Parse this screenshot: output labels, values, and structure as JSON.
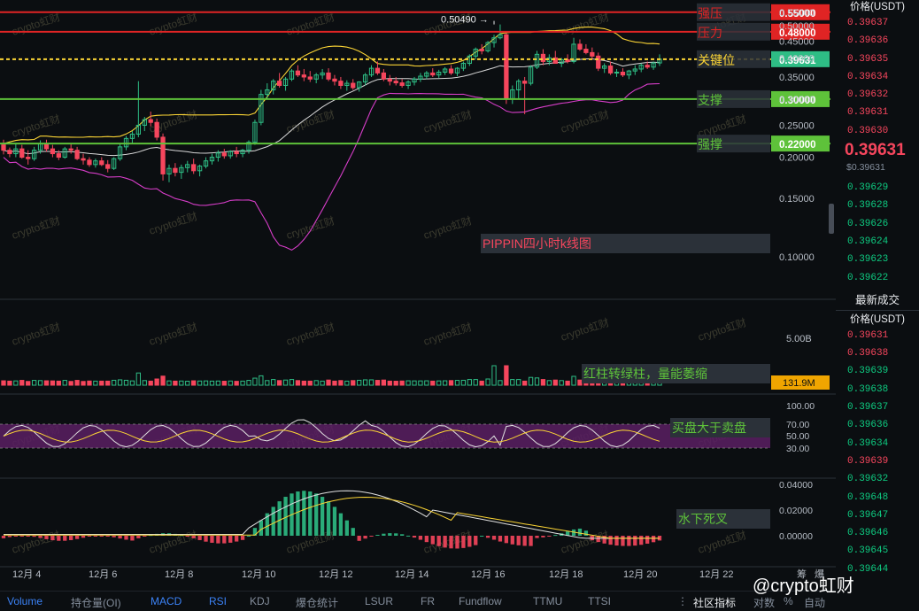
{
  "chart_data": {
    "type": "candlestick",
    "title": "PIPPIN四小时k线图",
    "price_axis": {
      "unit_label": "价格(USDT)",
      "ticks": [
        "0.55000",
        "0.50000",
        "0.45000",
        "0.40000",
        "0.35000",
        "0.30000",
        "0.25000",
        "0.20000",
        "0.15000",
        "0.10000"
      ],
      "scale": "log",
      "range": [
        0.078,
        0.57
      ]
    },
    "x_axis": {
      "ticks": [
        "12月 4",
        "12月 6",
        "12月 8",
        "12月 10",
        "12月 12",
        "12月 14",
        "12月 16",
        "12月 18",
        "12月 20",
        "12月 22"
      ]
    },
    "levels": [
      {
        "name": "强压",
        "value": 0.55,
        "label": "0.55000",
        "color": "#e02424"
      },
      {
        "name": "压力",
        "value": 0.48,
        "label": "0.48000",
        "color": "#e02424"
      },
      {
        "name": "关键位",
        "value": 0.39631,
        "label": "0.39631",
        "color": "#fcd535"
      },
      {
        "name": "支撑",
        "value": 0.3,
        "label": "0.30000",
        "color": "#5ec23a"
      },
      {
        "name": "强撑",
        "value": 0.22,
        "label": "0.22000",
        "color": "#5ec23a"
      }
    ],
    "high_marker": "0.50490 →",
    "current_price": "0.39631",
    "candles_ohlc": [
      [
        0.218,
        0.226,
        0.204,
        0.21
      ],
      [
        0.21,
        0.214,
        0.2,
        0.205
      ],
      [
        0.205,
        0.22,
        0.2,
        0.212
      ],
      [
        0.212,
        0.218,
        0.198,
        0.2
      ],
      [
        0.2,
        0.21,
        0.19,
        0.198
      ],
      [
        0.198,
        0.215,
        0.195,
        0.21
      ],
      [
        0.21,
        0.225,
        0.205,
        0.22
      ],
      [
        0.22,
        0.226,
        0.208,
        0.212
      ],
      [
        0.212,
        0.218,
        0.2,
        0.205
      ],
      [
        0.205,
        0.21,
        0.196,
        0.2
      ],
      [
        0.2,
        0.215,
        0.198,
        0.212
      ],
      [
        0.212,
        0.22,
        0.205,
        0.21
      ],
      [
        0.21,
        0.215,
        0.196,
        0.198
      ],
      [
        0.198,
        0.205,
        0.19,
        0.196
      ],
      [
        0.196,
        0.2,
        0.187,
        0.19
      ],
      [
        0.19,
        0.198,
        0.186,
        0.195
      ],
      [
        0.195,
        0.2,
        0.188,
        0.19
      ],
      [
        0.19,
        0.196,
        0.18,
        0.185
      ],
      [
        0.185,
        0.2,
        0.183,
        0.198
      ],
      [
        0.198,
        0.22,
        0.195,
        0.215
      ],
      [
        0.215,
        0.232,
        0.21,
        0.228
      ],
      [
        0.228,
        0.24,
        0.22,
        0.235
      ],
      [
        0.235,
        0.34,
        0.23,
        0.25
      ],
      [
        0.25,
        0.265,
        0.24,
        0.26
      ],
      [
        0.26,
        0.275,
        0.248,
        0.255
      ],
      [
        0.255,
        0.262,
        0.225,
        0.23
      ],
      [
        0.23,
        0.236,
        0.17,
        0.178
      ],
      [
        0.178,
        0.19,
        0.168,
        0.185
      ],
      [
        0.185,
        0.192,
        0.175,
        0.18
      ],
      [
        0.18,
        0.19,
        0.172,
        0.186
      ],
      [
        0.186,
        0.195,
        0.18,
        0.19
      ],
      [
        0.19,
        0.198,
        0.178,
        0.182
      ],
      [
        0.182,
        0.19,
        0.175,
        0.188
      ],
      [
        0.188,
        0.2,
        0.185,
        0.195
      ],
      [
        0.195,
        0.205,
        0.19,
        0.2
      ],
      [
        0.2,
        0.21,
        0.194,
        0.206
      ],
      [
        0.206,
        0.212,
        0.198,
        0.202
      ],
      [
        0.202,
        0.21,
        0.198,
        0.208
      ],
      [
        0.208,
        0.215,
        0.2,
        0.205
      ],
      [
        0.205,
        0.212,
        0.2,
        0.21
      ],
      [
        0.21,
        0.225,
        0.205,
        0.222
      ],
      [
        0.222,
        0.26,
        0.218,
        0.255
      ],
      [
        0.255,
        0.32,
        0.25,
        0.31
      ],
      [
        0.31,
        0.335,
        0.3,
        0.32
      ],
      [
        0.32,
        0.345,
        0.31,
        0.34
      ],
      [
        0.34,
        0.36,
        0.325,
        0.33
      ],
      [
        0.33,
        0.35,
        0.318,
        0.345
      ],
      [
        0.345,
        0.37,
        0.34,
        0.365
      ],
      [
        0.365,
        0.38,
        0.35,
        0.355
      ],
      [
        0.355,
        0.37,
        0.34,
        0.35
      ],
      [
        0.35,
        0.365,
        0.338,
        0.345
      ],
      [
        0.345,
        0.36,
        0.335,
        0.355
      ],
      [
        0.355,
        0.37,
        0.345,
        0.36
      ],
      [
        0.36,
        0.372,
        0.34,
        0.345
      ],
      [
        0.345,
        0.355,
        0.33,
        0.34
      ],
      [
        0.34,
        0.35,
        0.322,
        0.33
      ],
      [
        0.33,
        0.342,
        0.318,
        0.335
      ],
      [
        0.335,
        0.345,
        0.32,
        0.325
      ],
      [
        0.325,
        0.34,
        0.316,
        0.338
      ],
      [
        0.338,
        0.36,
        0.33,
        0.355
      ],
      [
        0.355,
        0.38,
        0.35,
        0.372
      ],
      [
        0.372,
        0.39,
        0.355,
        0.36
      ],
      [
        0.36,
        0.37,
        0.34,
        0.345
      ],
      [
        0.345,
        0.355,
        0.33,
        0.34
      ],
      [
        0.34,
        0.35,
        0.33,
        0.336
      ],
      [
        0.336,
        0.345,
        0.325,
        0.33
      ],
      [
        0.33,
        0.342,
        0.322,
        0.338
      ],
      [
        0.338,
        0.35,
        0.33,
        0.345
      ],
      [
        0.345,
        0.36,
        0.338,
        0.352
      ],
      [
        0.352,
        0.365,
        0.345,
        0.36
      ],
      [
        0.36,
        0.372,
        0.35,
        0.355
      ],
      [
        0.355,
        0.368,
        0.348,
        0.362
      ],
      [
        0.362,
        0.375,
        0.355,
        0.37
      ],
      [
        0.37,
        0.38,
        0.355,
        0.36
      ],
      [
        0.36,
        0.375,
        0.352,
        0.372
      ],
      [
        0.372,
        0.39,
        0.365,
        0.385
      ],
      [
        0.385,
        0.41,
        0.378,
        0.405
      ],
      [
        0.405,
        0.43,
        0.395,
        0.425
      ],
      [
        0.425,
        0.44,
        0.41,
        0.42
      ],
      [
        0.42,
        0.45,
        0.415,
        0.445
      ],
      [
        0.445,
        0.47,
        0.43,
        0.46
      ],
      [
        0.46,
        0.505,
        0.455,
        0.47
      ],
      [
        0.47,
        0.475,
        0.29,
        0.3
      ],
      [
        0.3,
        0.33,
        0.29,
        0.32
      ],
      [
        0.32,
        0.345,
        0.3,
        0.34
      ],
      [
        0.34,
        0.35,
        0.27,
        0.335
      ],
      [
        0.335,
        0.38,
        0.33,
        0.375
      ],
      [
        0.375,
        0.42,
        0.37,
        0.41
      ],
      [
        0.41,
        0.425,
        0.38,
        0.39
      ],
      [
        0.39,
        0.41,
        0.38,
        0.4
      ],
      [
        0.4,
        0.42,
        0.39,
        0.385
      ],
      [
        0.385,
        0.4,
        0.375,
        0.395
      ],
      [
        0.395,
        0.41,
        0.385,
        0.39
      ],
      [
        0.39,
        0.46,
        0.385,
        0.44
      ],
      [
        0.44,
        0.455,
        0.42,
        0.425
      ],
      [
        0.425,
        0.44,
        0.41,
        0.415
      ],
      [
        0.415,
        0.43,
        0.395,
        0.405
      ],
      [
        0.405,
        0.415,
        0.365,
        0.372
      ],
      [
        0.372,
        0.385,
        0.36,
        0.378
      ],
      [
        0.378,
        0.39,
        0.355,
        0.36
      ],
      [
        0.36,
        0.37,
        0.35,
        0.362
      ],
      [
        0.362,
        0.372,
        0.35,
        0.355
      ],
      [
        0.355,
        0.368,
        0.345,
        0.365
      ],
      [
        0.365,
        0.38,
        0.355,
        0.37
      ],
      [
        0.37,
        0.385,
        0.362,
        0.38
      ],
      [
        0.38,
        0.39,
        0.37,
        0.375
      ],
      [
        0.375,
        0.39,
        0.368,
        0.386
      ],
      [
        0.386,
        0.41,
        0.378,
        0.39631
      ]
    ],
    "volume_panel": {
      "tick": "5.00B",
      "current": "131.9M",
      "current_color": "#f0a500"
    },
    "rsi_panel": {
      "ticks": [
        "100.00",
        "70.00",
        "50.00",
        "30.00"
      ]
    },
    "macd_panel": {
      "ticks": [
        "0.04000",
        "0.02000",
        "0.00000"
      ]
    },
    "annotations": [
      "红柱转绿柱，量能萎缩",
      "买盘大于卖盘",
      "水下死叉"
    ]
  },
  "watermark": "crypto虹财",
  "order_book": {
    "header": "价格(USDT)",
    "asks": [
      "0.39637",
      "0.39636",
      "0.39635",
      "0.39634",
      "0.39632",
      "0.39631",
      "0.39630"
    ],
    "last_price": "0.39631",
    "last_price_sub": "$0.39631",
    "bids": [
      "0.39629",
      "0.39628",
      "0.39626",
      "0.39624",
      "0.39623",
      "0.39622"
    ],
    "trades_title": "最新成交",
    "trades_header": "价格(USDT)",
    "trades": [
      {
        "price": "0.39631",
        "side": "red"
      },
      {
        "price": "0.39638",
        "side": "red"
      },
      {
        "price": "0.39639",
        "side": "green"
      },
      {
        "price": "0.39638",
        "side": "green"
      },
      {
        "price": "0.39637",
        "side": "green"
      },
      {
        "price": "0.39636",
        "side": "green"
      },
      {
        "price": "0.39634",
        "side": "green"
      },
      {
        "price": "0.39639",
        "side": "red"
      },
      {
        "price": "0.39632",
        "side": "green"
      },
      {
        "price": "0.39648",
        "side": "green"
      },
      {
        "price": "0.39647",
        "side": "green"
      },
      {
        "price": "0.39646",
        "side": "green"
      },
      {
        "price": "0.39645",
        "side": "green"
      },
      {
        "price": "0.39644",
        "side": "green"
      }
    ]
  },
  "toolbar": {
    "tabs": [
      {
        "label": "Volume",
        "active": true
      },
      {
        "label": "持仓量(OI)",
        "active": false
      },
      {
        "label": "MACD",
        "active": true
      },
      {
        "label": "RSI",
        "active": true
      },
      {
        "label": "KDJ",
        "active": false
      },
      {
        "label": "爆仓统计",
        "active": false
      },
      {
        "label": "LSUR",
        "active": false
      },
      {
        "label": "FR",
        "active": false
      },
      {
        "label": "Fundflow",
        "active": false
      },
      {
        "label": "TTMU",
        "active": false
      },
      {
        "label": "TTSI",
        "active": false
      }
    ],
    "community_label": "社区指标",
    "right_labels": [
      "对数",
      "%",
      "自动"
    ],
    "extra_labels": [
      "筹",
      "爆"
    ]
  },
  "brand": "@crypto虹财"
}
